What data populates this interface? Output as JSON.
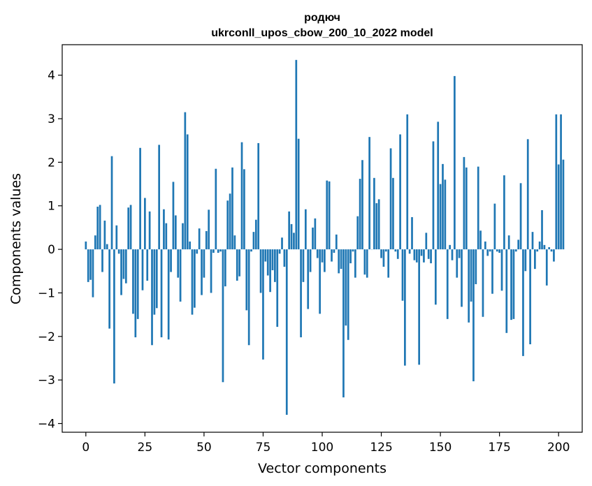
{
  "chart_data": {
    "type": "bar",
    "title": "родюч\nukrconll_upos_cbow_200_10_2022 model",
    "title_lines": [
      "родюч",
      "ukrconll_upos_cbow_200_10_2022 model"
    ],
    "xlabel": "Vector components",
    "ylabel": "Components values",
    "xlim": [
      -10,
      210
    ],
    "ylim": [
      -4.2,
      4.7
    ],
    "xticks": [
      0,
      25,
      50,
      75,
      100,
      125,
      150,
      175,
      200
    ],
    "yticks": [
      -4,
      -3,
      -2,
      -1,
      0,
      1,
      2,
      3,
      4
    ],
    "xtick_labels": [
      "0",
      "25",
      "50",
      "75",
      "100",
      "125",
      "150",
      "175",
      "200"
    ],
    "ytick_labels": [
      "−4",
      "−3",
      "−2",
      "−1",
      "0",
      "1",
      "2",
      "3",
      "4"
    ],
    "grid": false,
    "bar_color": "#1f77b4",
    "values": [
      0.18,
      -0.75,
      -0.7,
      -1.1,
      0.32,
      0.98,
      1.02,
      -0.52,
      0.66,
      0.12,
      -1.82,
      2.14,
      -3.08,
      0.55,
      -0.1,
      -1.05,
      -0.68,
      -0.78,
      0.96,
      1.02,
      -1.48,
      -2.02,
      -1.6,
      2.33,
      -0.94,
      1.18,
      -0.72,
      0.87,
      -2.2,
      -1.5,
      -1.35,
      2.4,
      -2.02,
      0.92,
      0.6,
      -2.07,
      -0.52,
      1.55,
      0.78,
      -0.65,
      -1.2,
      0.6,
      3.15,
      2.64,
      0.18,
      -1.5,
      -1.34,
      -0.1,
      0.48,
      -1.05,
      -0.65,
      0.42,
      0.91,
      -1.0,
      -0.08,
      1.85,
      -0.08,
      -0.05,
      -3.05,
      -0.85,
      1.12,
      1.28,
      1.88,
      0.32,
      -0.72,
      -0.62,
      2.46,
      1.84,
      -1.4,
      -2.2,
      -0.05,
      0.4,
      0.68,
      2.44,
      -1.0,
      -2.53,
      -0.28,
      -0.6,
      -0.98,
      -0.48,
      -0.75,
      -1.78,
      -0.1,
      0.27,
      -0.4,
      -3.8,
      0.87,
      0.58,
      0.38,
      4.35,
      2.54,
      -2.02,
      -0.75,
      0.92,
      -1.37,
      -0.52,
      0.5,
      0.71,
      -0.2,
      -1.48,
      -0.3,
      -0.52,
      1.58,
      1.56,
      -0.28,
      -0.08,
      0.34,
      -0.55,
      -0.45,
      -3.4,
      -1.75,
      -2.08,
      -0.32,
      -0.05,
      -0.65,
      0.76,
      1.62,
      2.05,
      -0.58,
      -0.65,
      2.58,
      0.0,
      1.64,
      1.06,
      1.15,
      -0.2,
      -0.4,
      -0.05,
      -0.65,
      2.32,
      1.64,
      -0.05,
      -0.22,
      2.64,
      -1.18,
      -2.67,
      3.1,
      -0.1,
      0.74,
      -0.25,
      -0.3,
      -2.65,
      -0.15,
      -0.3,
      0.38,
      -0.22,
      -0.32,
      2.48,
      -1.27,
      2.93,
      1.5,
      1.96,
      1.6,
      -1.6,
      0.1,
      -0.25,
      3.98,
      -0.65,
      -0.2,
      -1.32,
      2.12,
      1.88,
      -1.68,
      -1.2,
      -3.03,
      -0.8,
      1.9,
      0.43,
      -1.55,
      0.18,
      -0.15,
      -0.05,
      -1.02,
      1.05,
      -0.05,
      -0.08,
      -0.95,
      1.7,
      -1.92,
      0.32,
      -1.62,
      -1.6,
      -0.05,
      0.22,
      1.52,
      -2.45,
      -0.5,
      2.53,
      -2.18,
      0.4,
      -0.45,
      -0.05,
      0.18,
      0.9,
      0.1,
      -0.83,
      0.05,
      -0.05,
      -0.28,
      3.1,
      1.95,
      3.1,
      2.06
    ]
  }
}
